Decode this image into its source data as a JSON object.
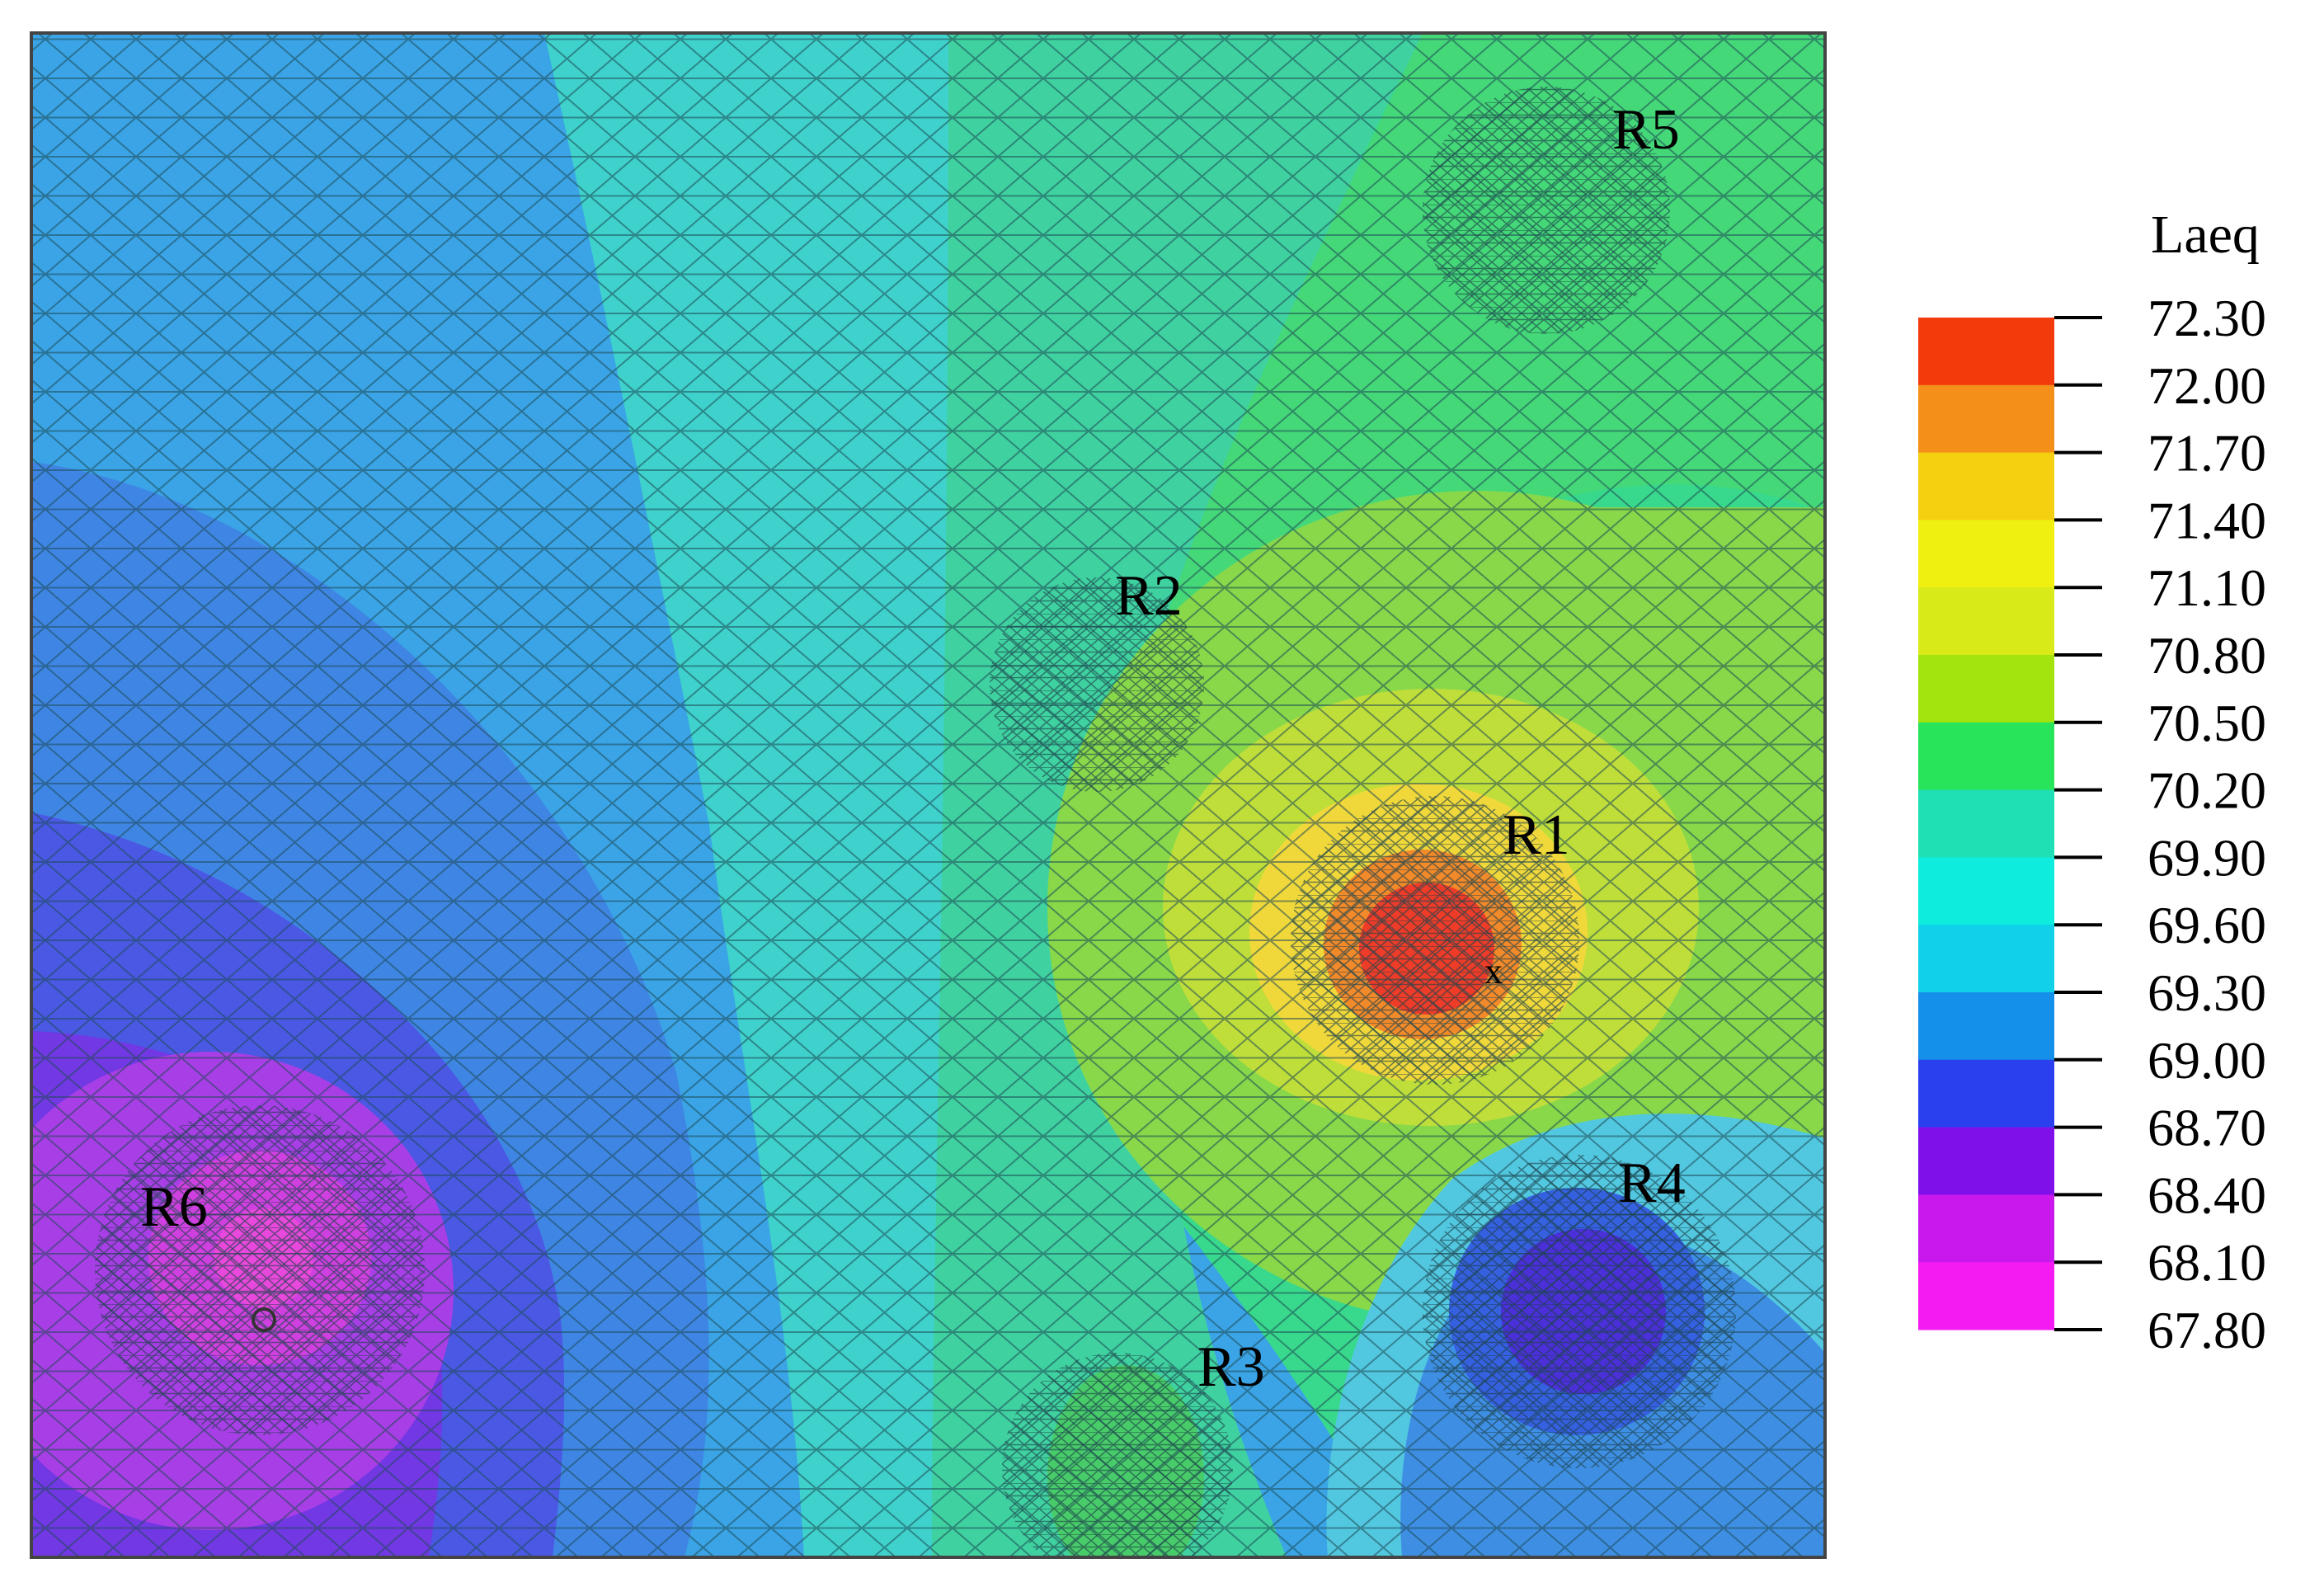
{
  "chart_data": {
    "type": "heatmap",
    "title": "",
    "colorbar": {
      "label": "Laeq",
      "ticks": [
        "72.30",
        "72.00",
        "71.70",
        "71.40",
        "71.10",
        "70.80",
        "70.50",
        "70.20",
        "69.90",
        "69.60",
        "69.30",
        "69.00",
        "68.70",
        "68.40",
        "68.10",
        "67.80"
      ],
      "range": [
        67.8,
        72.3
      ],
      "step": 0.3,
      "band_colors": [
        "#f23a0a",
        "#f4901a",
        "#f5d010",
        "#efef10",
        "#d8ea18",
        "#a4e40e",
        "#28e45a",
        "#1ee0b4",
        "#0eecde",
        "#10d0ea",
        "#1590ea",
        "#2a40ee",
        "#8010ea",
        "#c818ec",
        "#f41af2"
      ]
    },
    "receivers": [
      {
        "label": "R1",
        "level": 72.3
      },
      {
        "label": "R2",
        "level": 70.3
      },
      {
        "label": "R3",
        "level": 70.4
      },
      {
        "label": "R4",
        "level": 68.7
      },
      {
        "label": "R5",
        "level": 70.4
      },
      {
        "label": "R6",
        "level": 67.8
      }
    ],
    "grid": true,
    "legend_position": "right"
  }
}
